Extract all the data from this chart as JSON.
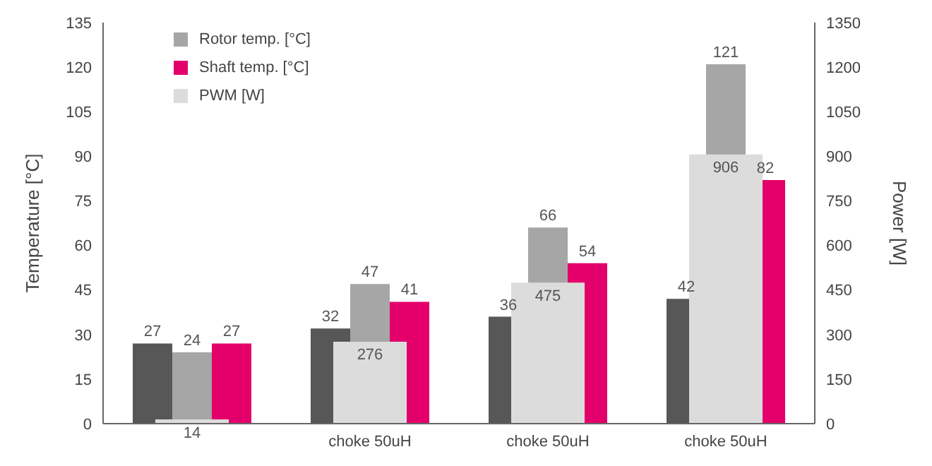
{
  "chart_data": {
    "type": "bar",
    "categories": [
      null,
      "choke 50uH",
      "choke 50uH",
      "choke 50uH"
    ],
    "ylabel": "Temperature [°C]",
    "y2label": "Power [W]",
    "ylim": [
      0,
      135
    ],
    "yticks": [
      0,
      15,
      30,
      45,
      60,
      75,
      90,
      105,
      120,
      135
    ],
    "y2lim": [
      0,
      1350
    ],
    "y2ticks": [
      0,
      150,
      300,
      450,
      600,
      750,
      900,
      1050,
      1200,
      1350
    ],
    "series": [
      {
        "color": "#575757",
        "values": [
          27,
          32,
          36,
          42
        ]
      },
      {
        "name": "Rotor temp. [°C]",
        "color": "#a6a6a6",
        "values": [
          24,
          47,
          66,
          121
        ]
      },
      {
        "name": "Shaft temp. [°C]",
        "color": "#e3006b",
        "values": [
          27,
          41,
          54,
          82
        ]
      },
      {
        "name": "PWM [W]",
        "color": "#dcdcdc",
        "values": [
          14,
          276,
          475,
          906
        ],
        "axis": "y2"
      }
    ],
    "data_labels": true,
    "legend": "top left"
  }
}
